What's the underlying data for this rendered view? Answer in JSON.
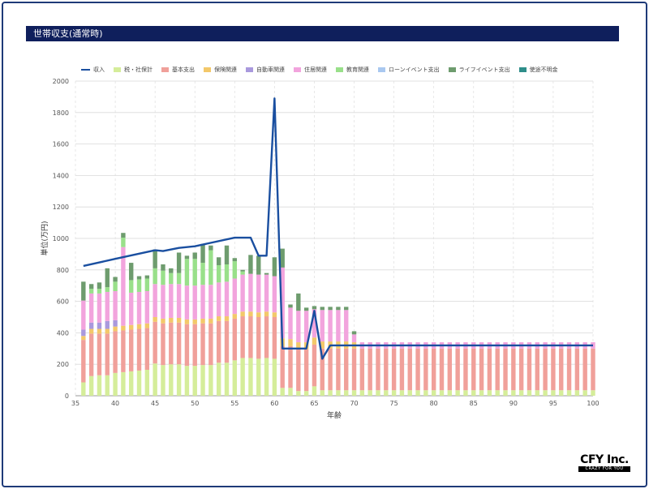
{
  "header": {
    "title": "世帯収支(通常時)"
  },
  "logo": {
    "main": "CFY Inc.",
    "sub": "CRAZY FOR YOU"
  },
  "colors": {
    "income": "#1a4fa0",
    "tax": "#d5ed9a",
    "basic": "#f0a09a",
    "insurance": "#f3c86a",
    "car": "#a999dd",
    "housing": "#f2a4dd",
    "education": "#99e08a",
    "loan": "#a9c8f0",
    "life_event": "#6e9c6e",
    "unknown": "#2e8e8a"
  },
  "chart_data": {
    "type": "bar",
    "stacked": true,
    "title": "",
    "xlabel": "年齢",
    "ylabel": "単位(万円)",
    "xlim": [
      35,
      100
    ],
    "ylim": [
      0,
      2000
    ],
    "x_ticks": [
      35,
      40,
      45,
      50,
      55,
      60,
      65,
      70,
      75,
      80,
      85,
      90,
      95,
      100
    ],
    "y_ticks": [
      0,
      200,
      400,
      600,
      800,
      1000,
      1200,
      1400,
      1600,
      1800,
      2000
    ],
    "grid": true,
    "legend_position": "top",
    "legend": [
      "収入",
      "税・社保計",
      "基本支出",
      "保険関連",
      "自動車関連",
      "住居関連",
      "教育関連",
      "ローンイベント支出",
      "ライフイベント支出",
      "使途不明金"
    ],
    "x": [
      36,
      37,
      38,
      39,
      40,
      41,
      42,
      43,
      44,
      45,
      46,
      47,
      48,
      49,
      50,
      51,
      52,
      53,
      54,
      55,
      56,
      57,
      58,
      59,
      60,
      61,
      62,
      63,
      64,
      65,
      66,
      67,
      68,
      69,
      70,
      71,
      72,
      73,
      74,
      75,
      76,
      77,
      78,
      79,
      80,
      81,
      82,
      83,
      84,
      85,
      86,
      87,
      88,
      89,
      90,
      91,
      92,
      93,
      94,
      95,
      96,
      97,
      98,
      99,
      100
    ],
    "series": [
      {
        "name": "税・社保計",
        "key": "tax",
        "values": [
          85,
          125,
          130,
          130,
          145,
          150,
          155,
          160,
          165,
          205,
          195,
          200,
          200,
          190,
          190,
          195,
          195,
          210,
          210,
          225,
          240,
          240,
          235,
          240,
          235,
          50,
          50,
          30,
          30,
          60,
          35,
          35,
          35,
          35,
          35,
          35,
          35,
          35,
          35,
          35,
          35,
          35,
          35,
          35,
          35,
          35,
          35,
          35,
          35,
          35,
          35,
          35,
          35,
          35,
          35,
          35,
          35,
          35,
          35,
          35,
          35,
          35,
          35,
          35,
          35
        ]
      },
      {
        "name": "基本支出",
        "key": "basic",
        "values": [
          270,
          270,
          265,
          265,
          265,
          265,
          265,
          265,
          265,
          265,
          265,
          265,
          265,
          265,
          265,
          265,
          265,
          265,
          265,
          265,
          265,
          265,
          265,
          265,
          265,
          265,
          265,
          265,
          265,
          265,
          265,
          265,
          265,
          265,
          265,
          265,
          265,
          265,
          265,
          265,
          265,
          265,
          265,
          265,
          265,
          265,
          265,
          265,
          265,
          265,
          265,
          265,
          265,
          265,
          265,
          265,
          265,
          265,
          265,
          265,
          265,
          265,
          265,
          265,
          265
        ]
      },
      {
        "name": "保険関連",
        "key": "insurance",
        "values": [
          25,
          30,
          30,
          30,
          30,
          30,
          30,
          30,
          30,
          30,
          30,
          30,
          30,
          30,
          30,
          30,
          30,
          30,
          30,
          30,
          30,
          30,
          30,
          30,
          30,
          50,
          45,
          45,
          45,
          45,
          45,
          45,
          45,
          45,
          40,
          0,
          0,
          0,
          0,
          0,
          0,
          0,
          0,
          0,
          0,
          0,
          0,
          0,
          0,
          0,
          0,
          0,
          0,
          0,
          0,
          0,
          0,
          0,
          0,
          0,
          0,
          0,
          0,
          0,
          0
        ]
      },
      {
        "name": "自動車関連",
        "key": "car",
        "values": [
          40,
          40,
          40,
          50,
          40,
          0,
          0,
          0,
          0,
          0,
          0,
          0,
          0,
          0,
          0,
          0,
          0,
          0,
          0,
          0,
          0,
          0,
          0,
          0,
          0,
          0,
          0,
          0,
          0,
          0,
          0,
          0,
          0,
          0,
          0,
          0,
          0,
          0,
          0,
          0,
          0,
          0,
          0,
          0,
          0,
          0,
          0,
          0,
          0,
          0,
          0,
          0,
          0,
          0,
          0,
          0,
          0,
          0,
          0,
          0,
          0,
          0,
          0,
          0,
          0
        ]
      },
      {
        "name": "住居関連",
        "key": "housing",
        "values": [
          185,
          185,
          185,
          185,
          185,
          500,
          205,
          205,
          205,
          210,
          215,
          215,
          215,
          215,
          215,
          215,
          215,
          215,
          220,
          225,
          235,
          240,
          240,
          235,
          230,
          450,
          200,
          200,
          200,
          180,
          200,
          200,
          200,
          200,
          50,
          40,
          40,
          40,
          40,
          40,
          40,
          40,
          40,
          40,
          40,
          40,
          40,
          40,
          40,
          40,
          40,
          40,
          40,
          40,
          40,
          40,
          40,
          40,
          40,
          40,
          40,
          40,
          40,
          40,
          40
        ]
      },
      {
        "name": "教育関連",
        "key": "education",
        "values": [
          0,
          30,
          30,
          30,
          60,
          60,
          80,
          80,
          80,
          100,
          90,
          70,
          70,
          170,
          170,
          140,
          220,
          110,
          110,
          110,
          20,
          0,
          0,
          0,
          0,
          0,
          0,
          0,
          0,
          0,
          0,
          0,
          0,
          0,
          0,
          0,
          0,
          0,
          0,
          0,
          0,
          0,
          0,
          0,
          0,
          0,
          0,
          0,
          0,
          0,
          0,
          0,
          0,
          0,
          0,
          0,
          0,
          0,
          0,
          0,
          0,
          0,
          0,
          0,
          0
        ]
      },
      {
        "name": "ローンイベント支出",
        "key": "loan",
        "values": [
          0,
          0,
          0,
          0,
          0,
          0,
          0,
          0,
          0,
          0,
          0,
          0,
          0,
          0,
          0,
          0,
          0,
          0,
          0,
          0,
          0,
          0,
          0,
          0,
          0,
          0,
          0,
          0,
          0,
          0,
          0,
          0,
          0,
          0,
          0,
          0,
          0,
          0,
          0,
          0,
          0,
          0,
          0,
          0,
          0,
          0,
          0,
          0,
          0,
          0,
          0,
          0,
          0,
          0,
          0,
          0,
          0,
          0,
          0,
          0,
          0,
          0,
          0,
          0,
          0
        ]
      },
      {
        "name": "ライフイベント支出",
        "key": "life_event",
        "values": [
          120,
          30,
          40,
          120,
          30,
          30,
          110,
          20,
          20,
          120,
          40,
          30,
          130,
          20,
          40,
          120,
          30,
          50,
          120,
          20,
          10,
          120,
          120,
          10,
          120,
          120,
          20,
          110,
          20,
          20,
          20,
          20,
          20,
          20,
          20,
          0,
          0,
          0,
          0,
          0,
          0,
          0,
          0,
          0,
          0,
          0,
          0,
          0,
          0,
          0,
          0,
          0,
          0,
          0,
          0,
          0,
          0,
          0,
          0,
          0,
          0,
          0,
          0,
          0,
          0
        ]
      },
      {
        "name": "使途不明金",
        "key": "unknown",
        "values": [
          0,
          0,
          0,
          0,
          0,
          0,
          0,
          0,
          0,
          0,
          0,
          0,
          0,
          0,
          0,
          0,
          0,
          0,
          0,
          0,
          0,
          0,
          0,
          0,
          0,
          0,
          0,
          0,
          0,
          0,
          0,
          0,
          0,
          0,
          0,
          0,
          0,
          0,
          0,
          0,
          0,
          0,
          0,
          0,
          0,
          0,
          0,
          0,
          0,
          0,
          0,
          0,
          0,
          0,
          0,
          0,
          0,
          0,
          0,
          0,
          0,
          0,
          0,
          0,
          0
        ]
      }
    ],
    "income": {
      "name": "収入",
      "x": [
        36,
        40,
        45,
        46,
        48,
        50,
        55,
        57,
        58,
        59,
        60,
        61,
        62,
        63,
        64,
        65,
        66,
        67,
        68,
        69,
        70,
        100
      ],
      "values": [
        825,
        870,
        925,
        920,
        940,
        950,
        1005,
        1005,
        890,
        890,
        1890,
        300,
        300,
        300,
        300,
        540,
        235,
        320,
        320,
        320,
        320,
        320
      ]
    }
  }
}
